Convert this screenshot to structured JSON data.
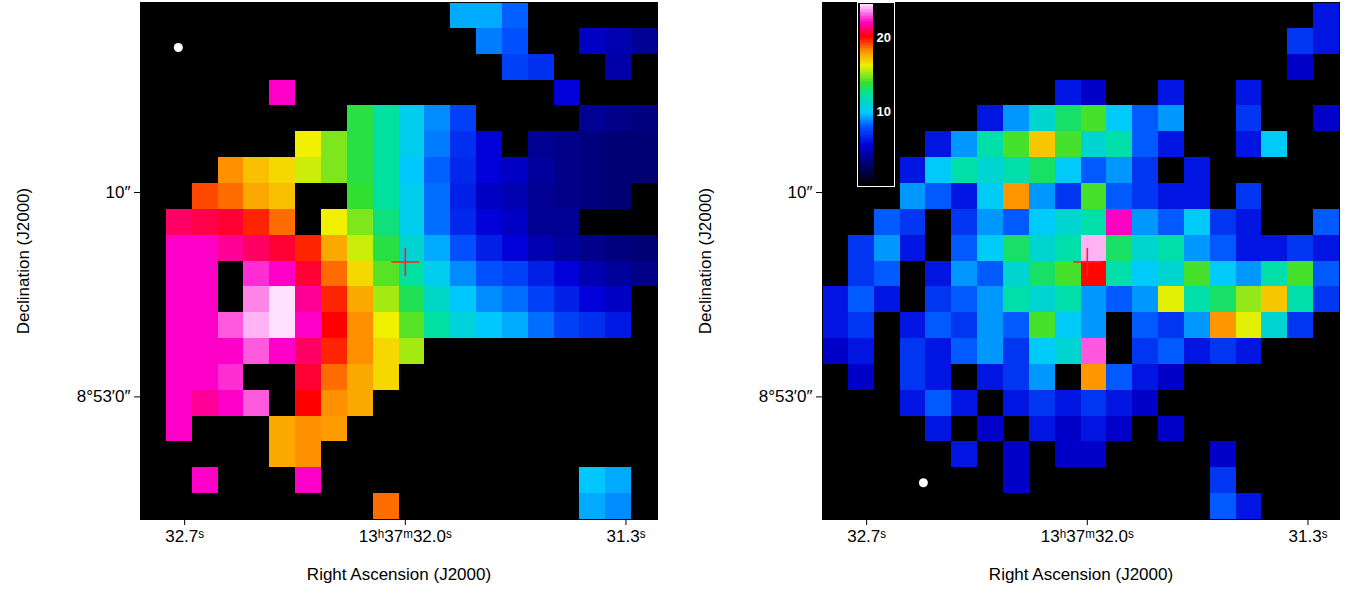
{
  "chart_data": [
    {
      "type": "heatmap",
      "xlabel": "Right Ascension (J2000)",
      "ylabel": "Declination (J2000)",
      "xlim": [
        32.84,
        31.2
      ],
      "ylim": [
        -6.0,
        19.3
      ],
      "xticks": [
        {
          "value": 32.7,
          "label": "32.7ˢ"
        },
        {
          "value": 32.0,
          "label": "13ʰ37ᵐ32.0ˢ"
        },
        {
          "value": 31.3,
          "label": "31.3ˢ"
        }
      ],
      "yticks": [
        {
          "value": 10,
          "label": "10″"
        },
        {
          "value": 0,
          "label": "8°53′0″"
        }
      ],
      "zlim": [
        0,
        1
      ],
      "center": [
        32.0,
        6.6
      ],
      "beam": [
        32.72,
        17.1
      ],
      "cells": [
        [
          null,
          null,
          null,
          null,
          null,
          null,
          null,
          null,
          null,
          null,
          null,
          null,
          0.38,
          0.38,
          0.33,
          null,
          null,
          null,
          null,
          null
        ],
        [
          null,
          null,
          null,
          null,
          null,
          null,
          null,
          null,
          null,
          null,
          null,
          null,
          null,
          0.35,
          0.32,
          null,
          null,
          0.2,
          0.18,
          0.15
        ],
        [
          null,
          null,
          null,
          null,
          null,
          null,
          null,
          null,
          null,
          null,
          null,
          null,
          null,
          null,
          0.3,
          0.28,
          null,
          null,
          0.17,
          null
        ],
        [
          null,
          null,
          null,
          null,
          null,
          0.9,
          null,
          null,
          null,
          null,
          null,
          null,
          null,
          null,
          null,
          null,
          0.22,
          null,
          null,
          null
        ],
        [
          null,
          null,
          null,
          null,
          null,
          null,
          null,
          null,
          0.55,
          0.5,
          0.42,
          0.36,
          0.3,
          null,
          null,
          null,
          null,
          0.15,
          0.14,
          0.13
        ],
        [
          null,
          null,
          null,
          null,
          null,
          null,
          0.66,
          0.6,
          0.55,
          0.5,
          0.42,
          0.35,
          0.28,
          0.22,
          null,
          0.15,
          0.14,
          0.13,
          0.12,
          0.12
        ],
        [
          null,
          null,
          null,
          0.74,
          0.7,
          0.68,
          0.64,
          0.6,
          0.55,
          0.5,
          0.4,
          0.33,
          0.27,
          0.22,
          0.2,
          0.16,
          0.14,
          0.13,
          0.12,
          0.12
        ],
        [
          null,
          null,
          0.78,
          0.76,
          0.72,
          0.7,
          null,
          null,
          0.56,
          0.5,
          0.42,
          0.34,
          0.26,
          0.2,
          0.18,
          0.15,
          0.14,
          0.13,
          0.12,
          null
        ],
        [
          null,
          0.86,
          0.85,
          0.84,
          0.8,
          0.76,
          null,
          0.66,
          0.6,
          0.52,
          0.42,
          0.34,
          0.27,
          0.22,
          0.2,
          0.15,
          0.15,
          null,
          null,
          null
        ],
        [
          null,
          0.9,
          0.9,
          0.88,
          0.86,
          0.84,
          0.8,
          0.72,
          0.64,
          0.55,
          0.45,
          0.38,
          0.32,
          0.26,
          0.22,
          0.18,
          0.16,
          0.14,
          0.13,
          0.12
        ],
        [
          null,
          0.9,
          0.9,
          null,
          0.92,
          0.9,
          0.84,
          0.76,
          0.68,
          0.58,
          0.5,
          0.42,
          0.36,
          0.32,
          0.3,
          0.26,
          0.22,
          0.18,
          0.16,
          0.14
        ],
        [
          null,
          0.9,
          0.9,
          null,
          0.96,
          1,
          0.88,
          0.8,
          0.72,
          0.62,
          0.54,
          0.46,
          0.4,
          0.36,
          0.34,
          0.3,
          0.26,
          0.22,
          0.2,
          null
        ],
        [
          null,
          0.9,
          0.9,
          0.94,
          0.98,
          1,
          0.9,
          0.82,
          0.74,
          0.66,
          0.58,
          0.5,
          0.44,
          0.4,
          0.38,
          0.34,
          0.3,
          0.28,
          0.25,
          null
        ],
        [
          null,
          0.9,
          0.9,
          0.9,
          0.94,
          0.9,
          0.86,
          0.8,
          0.74,
          0.68,
          0.62,
          null,
          null,
          null,
          null,
          null,
          null,
          null,
          null,
          null
        ],
        [
          null,
          0.9,
          0.9,
          0.92,
          null,
          null,
          0.84,
          0.76,
          0.72,
          0.68,
          null,
          null,
          null,
          null,
          null,
          null,
          null,
          null,
          null,
          null
        ],
        [
          null,
          0.9,
          0.88,
          0.9,
          0.94,
          null,
          0.82,
          0.74,
          0.72,
          null,
          null,
          null,
          null,
          null,
          null,
          null,
          null,
          null,
          null,
          null
        ],
        [
          null,
          0.9,
          null,
          null,
          null,
          0.72,
          0.74,
          0.73,
          null,
          null,
          null,
          null,
          null,
          null,
          null,
          null,
          null,
          null,
          null,
          null
        ],
        [
          null,
          null,
          null,
          null,
          null,
          0.72,
          0.74,
          null,
          null,
          null,
          null,
          null,
          null,
          null,
          null,
          null,
          null,
          null,
          null,
          null
        ],
        [
          null,
          null,
          0.9,
          null,
          null,
          null,
          0.9,
          null,
          null,
          null,
          null,
          null,
          null,
          null,
          null,
          null,
          null,
          0.4,
          0.38,
          null
        ],
        [
          null,
          null,
          null,
          null,
          null,
          null,
          null,
          null,
          null,
          0.76,
          null,
          null,
          null,
          null,
          null,
          null,
          null,
          0.38,
          0.36,
          null
        ]
      ]
    },
    {
      "type": "heatmap",
      "xlabel": "Right Ascension (J2000)",
      "ylabel": "Declination (J2000)",
      "xlim": [
        32.84,
        31.2
      ],
      "ylim": [
        -6.0,
        19.3
      ],
      "xticks": [
        {
          "value": 32.7,
          "label": "32.7ˢ"
        },
        {
          "value": 32.0,
          "label": "13ʰ37ᵐ32.0ˢ"
        },
        {
          "value": 31.3,
          "label": "31.3ˢ"
        }
      ],
      "yticks": [
        {
          "value": 10,
          "label": "10″"
        },
        {
          "value": 0,
          "label": "8°53′0″"
        }
      ],
      "colorbar": {
        "range": [
          0,
          24.5
        ],
        "ticks": [
          10,
          20
        ]
      },
      "center": [
        32.0,
        6.6
      ],
      "beam": [
        32.52,
        -4.2
      ],
      "cells": [
        [
          null,
          null,
          null,
          null,
          null,
          null,
          null,
          null,
          null,
          null,
          null,
          null,
          null,
          null,
          null,
          null,
          null,
          null,
          null,
          6
        ],
        [
          null,
          null,
          null,
          null,
          null,
          null,
          null,
          null,
          null,
          null,
          null,
          null,
          null,
          null,
          null,
          null,
          null,
          null,
          7,
          6
        ],
        [
          null,
          null,
          null,
          null,
          null,
          null,
          null,
          null,
          null,
          null,
          null,
          null,
          null,
          null,
          null,
          null,
          null,
          null,
          5,
          null
        ],
        [
          null,
          null,
          null,
          null,
          null,
          null,
          null,
          null,
          null,
          6,
          5,
          null,
          null,
          6,
          null,
          null,
          6,
          null,
          null,
          null
        ],
        [
          null,
          null,
          null,
          null,
          null,
          null,
          6,
          9,
          11,
          13,
          14,
          10,
          8,
          9,
          null,
          null,
          7,
          null,
          null,
          5
        ],
        [
          null,
          null,
          null,
          null,
          6,
          9,
          12,
          14,
          17,
          14,
          11,
          12,
          8,
          6,
          null,
          null,
          6,
          10,
          null,
          null
        ],
        [
          null,
          null,
          null,
          6,
          10,
          12,
          11,
          12,
          13,
          10,
          8,
          9,
          7,
          null,
          6,
          null,
          null,
          null,
          null,
          null
        ],
        [
          null,
          null,
          null,
          9,
          8,
          6,
          10,
          18,
          9,
          7,
          14,
          8,
          7,
          6,
          6,
          null,
          7,
          null,
          null,
          null
        ],
        [
          null,
          null,
          8,
          7,
          null,
          7,
          9,
          8,
          10,
          11,
          12,
          22,
          9,
          8,
          10,
          7,
          6,
          null,
          null,
          8
        ],
        [
          null,
          7,
          9,
          6,
          null,
          8,
          10,
          13,
          11,
          12,
          24,
          13,
          11,
          12,
          9,
          8,
          6,
          6,
          7,
          6
        ],
        [
          null,
          7,
          8,
          null,
          6,
          9,
          8,
          11,
          13,
          14,
          20,
          12,
          10,
          11,
          14,
          10,
          9,
          12,
          14,
          8
        ],
        [
          6,
          8,
          6,
          null,
          7,
          8,
          9,
          12,
          11,
          12,
          9,
          8,
          9,
          16,
          12,
          13,
          15,
          17,
          12,
          7
        ],
        [
          6,
          7,
          null,
          6,
          8,
          7,
          9,
          8,
          14,
          10,
          9,
          null,
          8,
          7,
          9,
          18,
          16,
          11,
          7,
          null
        ],
        [
          5,
          6,
          null,
          7,
          6,
          8,
          9,
          7,
          10,
          11,
          23,
          null,
          7,
          8,
          6,
          7,
          6,
          null,
          null,
          null
        ],
        [
          null,
          5,
          null,
          7,
          6,
          null,
          6,
          7,
          9,
          null,
          18,
          8,
          6,
          5,
          null,
          null,
          null,
          null,
          null,
          null
        ],
        [
          null,
          null,
          null,
          6,
          8,
          6,
          null,
          6,
          7,
          6,
          7,
          6,
          5,
          null,
          null,
          null,
          null,
          null,
          null,
          null
        ],
        [
          null,
          null,
          null,
          null,
          6,
          null,
          5,
          null,
          6,
          5,
          6,
          5,
          null,
          5,
          null,
          null,
          null,
          null,
          null,
          null
        ],
        [
          null,
          null,
          null,
          null,
          null,
          6,
          null,
          5,
          null,
          5,
          5,
          null,
          null,
          null,
          null,
          5,
          null,
          null,
          null,
          null
        ],
        [
          null,
          null,
          null,
          null,
          null,
          null,
          null,
          5,
          null,
          null,
          null,
          null,
          null,
          null,
          null,
          7,
          null,
          null,
          null,
          null
        ],
        [
          null,
          null,
          null,
          null,
          null,
          null,
          null,
          null,
          null,
          null,
          null,
          null,
          null,
          null,
          null,
          8,
          6,
          null,
          null,
          null
        ]
      ]
    }
  ]
}
